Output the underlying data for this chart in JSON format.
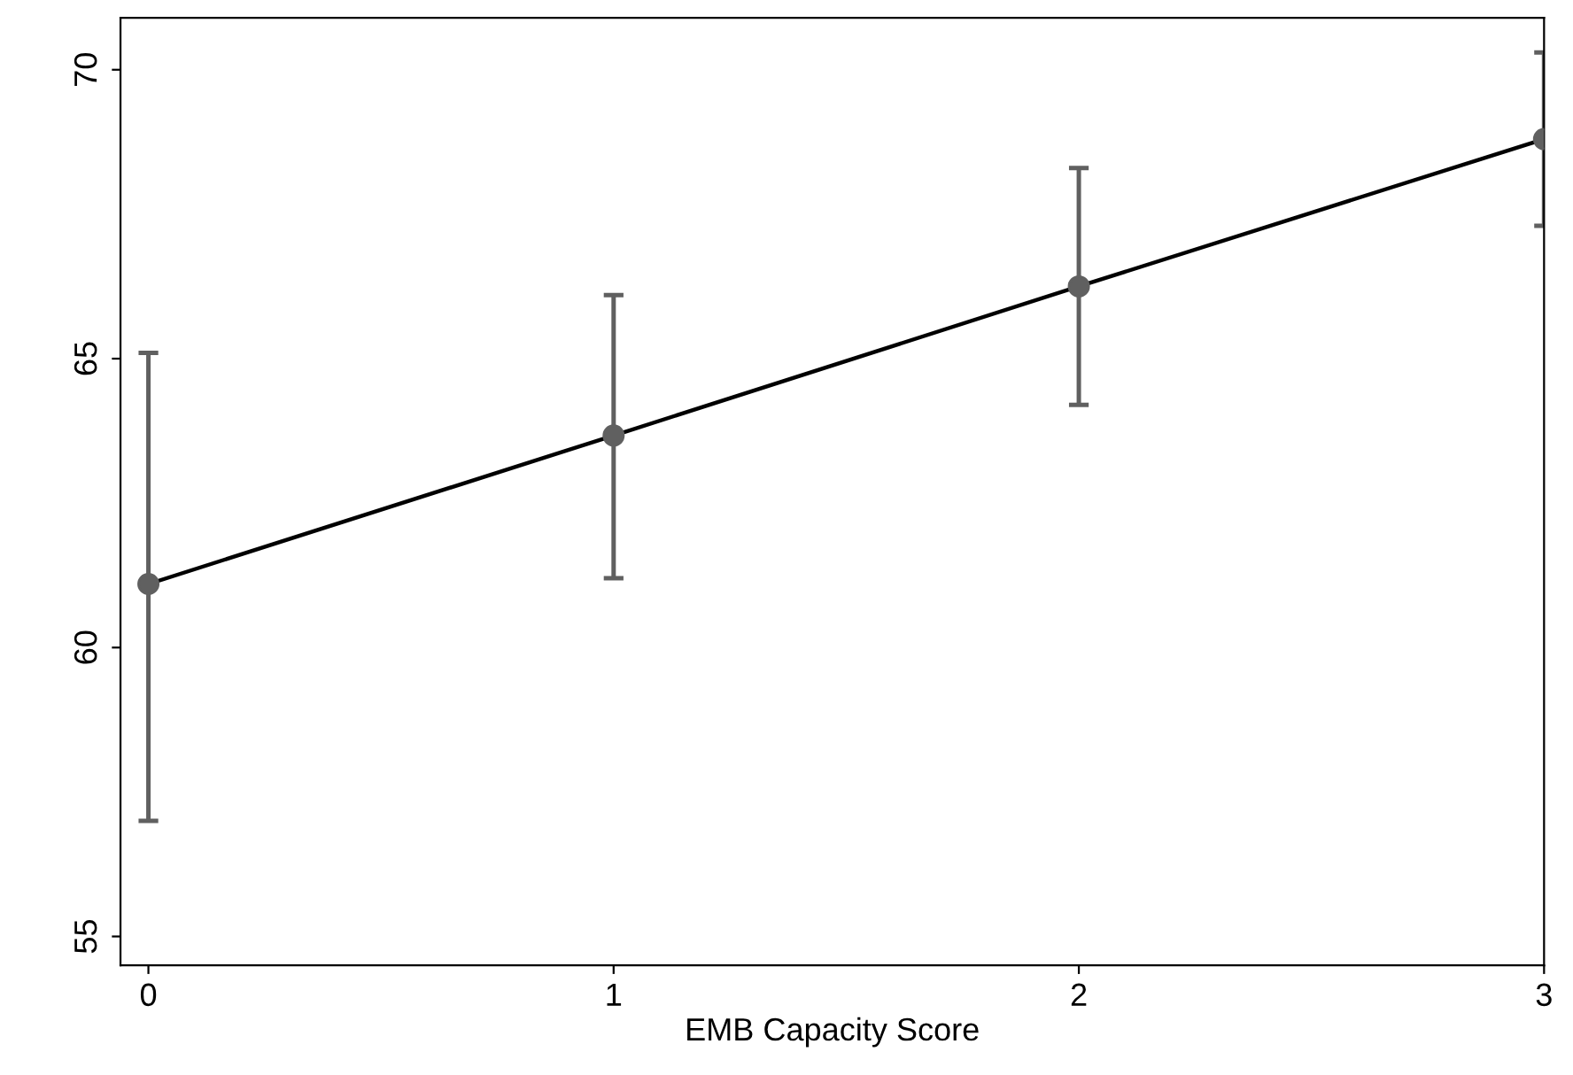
{
  "chart_data": {
    "type": "line",
    "xlabel": "EMB Capacity Score",
    "x": [
      0,
      1,
      2,
      3
    ],
    "series": [
      {
        "color": "#000000",
        "colors": [
          "#606060",
          "#606060",
          "#606060",
          "#606060"
        ],
        "values": [
          61.1,
          63.67,
          66.25,
          68.8
        ],
        "errors": [
          [
            57.0,
            65.1
          ],
          [
            61.2,
            66.1
          ],
          [
            64.2,
            68.3
          ],
          [
            67.3,
            70.3
          ]
        ]
      }
    ],
    "xlim": [
      -0.06,
      3
    ],
    "xticks": [
      0,
      1,
      2,
      3
    ],
    "ylim": [
      54.5,
      70.9
    ],
    "yticks": [
      55,
      60,
      65,
      70
    ],
    "marker": "circle",
    "line_style": "solid",
    "grid": false,
    "legend": false
  }
}
